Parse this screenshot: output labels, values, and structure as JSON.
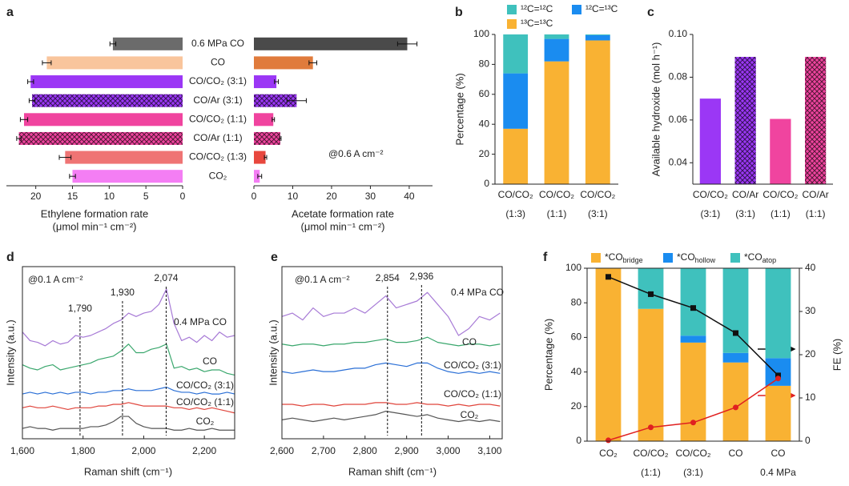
{
  "chart_data": [
    {
      "type": "hbar",
      "panel": "a",
      "categories": [
        "0.6 MPa CO",
        "CO",
        "CO/CO₂ (3:1)",
        "CO/Ar (3:1)",
        "CO/CO₂ (1:1)",
        "CO/Ar (1:1)",
        "CO/CO₂ (1:3)",
        "CO₂"
      ],
      "values": [
        9.5,
        18.5,
        20.7,
        20.5,
        21.6,
        22.3,
        16.0,
        15.0
      ],
      "errors": [
        0.4,
        0.6,
        0.4,
        0.4,
        0.5,
        0.3,
        0.8,
        0.4
      ],
      "colors": [
        "#6b6b6b",
        "#f9c59c",
        "#9b37f5",
        "#9b37f5",
        "#f0449f",
        "#f0449f",
        "#ef7474",
        "#f47ef4"
      ],
      "hatched": [
        false,
        false,
        false,
        true,
        false,
        true,
        false,
        false
      ],
      "xlim": [
        0,
        24
      ],
      "invert_x": true,
      "xticks": [
        0,
        5,
        10,
        15,
        20
      ],
      "xlabel": [
        "Ethylene formation rate",
        "(μmol min⁻¹ cm⁻²)"
      ]
    },
    {
      "type": "hbar",
      "values": [
        39.5,
        15.2,
        5.8,
        11.0,
        5.0,
        6.8,
        3.0,
        1.5
      ],
      "errors": [
        2.5,
        1.0,
        0.5,
        2.5,
        0.3,
        0.2,
        0.3,
        0.5
      ],
      "colors": [
        "#4a4a4a",
        "#e07b3c",
        "#9b37f5",
        "#9b37f5",
        "#f0449f",
        "#f0449f",
        "#e8473e",
        "#f47ef4"
      ],
      "hatched": [
        false,
        false,
        false,
        true,
        false,
        true,
        false,
        false
      ],
      "xlim": [
        0,
        46
      ],
      "invert_x": false,
      "xticks": [
        0,
        10,
        20,
        30,
        40
      ],
      "xlabel": [
        "Acetate formation rate",
        "(μmol min⁻¹ cm⁻²)"
      ],
      "annotation": "@0.6 A cm⁻²"
    },
    {
      "type": "bar",
      "panel": "b",
      "stacked": true,
      "categories": [
        [
          "CO/CO₂",
          "(1:3)"
        ],
        [
          "CO/CO₂",
          "(1:1)"
        ],
        [
          "CO/CO₂",
          "(3:1)"
        ]
      ],
      "series": [
        {
          "name": "¹³C=¹³C",
          "color": "#f9b233",
          "values": [
            37,
            82,
            96
          ]
        },
        {
          "name": "¹²C=¹³C",
          "color": "#1a8cf0",
          "values": [
            37,
            15,
            3.5
          ]
        },
        {
          "name": "¹²C=¹²C",
          "color": "#3fc1bd",
          "values": [
            26,
            3,
            0.5
          ]
        }
      ],
      "ylabel": "Percentage (%)",
      "ylim": [
        0,
        100
      ],
      "yticks": [
        0,
        20,
        40,
        60,
        80,
        100
      ]
    },
    {
      "type": "bar",
      "panel": "c",
      "categories": [
        [
          "CO/CO₂",
          "(3:1)"
        ],
        [
          "CO/Ar",
          "(3:1)"
        ],
        [
          "CO/CO₂",
          "(1:1)"
        ],
        [
          "CO/Ar",
          "(1:1)"
        ]
      ],
      "values": [
        0.07,
        0.0895,
        0.0605,
        0.0895
      ],
      "colors": [
        "#9b37f5",
        "#9b37f5",
        "#f0449f",
        "#f0449f"
      ],
      "hatched": [
        false,
        true,
        false,
        true
      ],
      "ylabel": "Available hydroxide (mol h⁻¹)",
      "ylim": [
        0.03,
        0.1
      ],
      "yticks": [
        0.04,
        0.06,
        0.08,
        {
          "value": 0.1,
          "label": "0.10"
        }
      ]
    },
    {
      "type": "line",
      "panel": "d",
      "x": [
        1600,
        1625,
        1650,
        1675,
        1700,
        1725,
        1750,
        1775,
        1800,
        1825,
        1850,
        1875,
        1900,
        1925,
        1950,
        1975,
        2000,
        2025,
        2050,
        2075,
        2100,
        2125,
        2150,
        2175,
        2200,
        2225,
        2250,
        2275,
        2300
      ],
      "series": [
        {
          "name": "0.4 MPa CO",
          "color": "#a77ad6",
          "values": [
            6.2,
            5.7,
            5.6,
            5.4,
            5.7,
            5.5,
            5.6,
            6.0,
            5.9,
            6.0,
            6.2,
            6.4,
            6.7,
            6.9,
            7.3,
            7.1,
            7.3,
            7.4,
            7.8,
            8.7,
            6.7,
            5.7,
            5.9,
            5.6,
            6.0,
            5.7,
            6.2,
            5.9,
            6.0
          ]
        },
        {
          "name": "CO",
          "color": "#3aa76d",
          "values": [
            4.3,
            4.1,
            4.0,
            4.2,
            4.3,
            4.0,
            4.1,
            4.2,
            4.3,
            4.4,
            4.6,
            4.7,
            4.8,
            5.1,
            5.5,
            5.0,
            5.0,
            5.2,
            5.3,
            5.5,
            4.1,
            4.2,
            4.0,
            4.1,
            3.9,
            4.0,
            4.0,
            3.8,
            3.7
          ]
        },
        {
          "name": "CO/CO₂ (3:1)",
          "color": "#2a6fd6",
          "values": [
            2.6,
            2.7,
            2.6,
            2.7,
            2.6,
            2.7,
            2.6,
            2.7,
            2.7,
            2.6,
            2.7,
            2.7,
            2.8,
            2.8,
            2.9,
            2.8,
            2.8,
            2.8,
            2.9,
            3.0,
            2.8,
            2.7,
            2.7,
            2.6,
            2.7,
            2.6,
            2.6,
            2.7,
            2.6
          ]
        },
        {
          "name": "CO/CO₂ (1:1)",
          "color": "#e0453c",
          "values": [
            1.8,
            1.9,
            1.8,
            1.8,
            1.9,
            1.8,
            1.7,
            1.8,
            1.8,
            1.8,
            1.9,
            1.9,
            2.0,
            2.0,
            2.1,
            2.0,
            1.9,
            1.9,
            1.9,
            1.9,
            1.8,
            1.8,
            1.7,
            1.8,
            1.7,
            1.8,
            1.7,
            1.6,
            1.5
          ]
        },
        {
          "name": "CO₂",
          "color": "#555555",
          "values": [
            0.6,
            0.7,
            0.6,
            0.6,
            0.5,
            0.6,
            0.6,
            0.6,
            0.6,
            0.7,
            0.7,
            0.8,
            1.0,
            1.3,
            1.3,
            0.9,
            0.7,
            0.6,
            0.6,
            0.6,
            0.5,
            0.5,
            0.6,
            0.5,
            0.5,
            0.6,
            0.5,
            0.5,
            0.5
          ]
        }
      ],
      "xlim": [
        1600,
        2300
      ],
      "ylim": [
        0,
        10
      ],
      "xticks": [
        {
          "value": 1600,
          "label": "1,600"
        },
        {
          "value": 1800,
          "label": "1,800"
        },
        {
          "value": 2000,
          "label": "2,000"
        },
        {
          "value": 2200,
          "label": "2,200"
        }
      ],
      "peaks": [
        {
          "value": 1790,
          "label": "1,790"
        },
        {
          "value": 1930,
          "label": "1,930"
        },
        {
          "value": 2074,
          "label": "2,074"
        }
      ],
      "annotation": "@0.1 A cm⁻²",
      "xlabel": "Raman shift (cm⁻¹)",
      "ylabel": "Intensity (a.u.)"
    },
    {
      "type": "line",
      "panel": "e",
      "x": [
        2600,
        2625,
        2650,
        2675,
        2700,
        2725,
        2750,
        2775,
        2800,
        2825,
        2850,
        2875,
        2900,
        2925,
        2950,
        2975,
        3000,
        3025,
        3050,
        3075,
        3100,
        3125
      ],
      "series": [
        {
          "name": "0.4 MPa CO",
          "color": "#a77ad6",
          "values": [
            7.1,
            7.3,
            6.9,
            7.6,
            7.1,
            7.3,
            7.3,
            7.6,
            7.3,
            7.8,
            8.3,
            7.6,
            7.8,
            8.0,
            8.5,
            7.8,
            7.1,
            6.0,
            6.4,
            7.1,
            6.9,
            7.3
          ]
        },
        {
          "name": "CO",
          "color": "#3aa76d",
          "values": [
            5.5,
            5.4,
            5.5,
            5.5,
            5.4,
            5.5,
            5.5,
            5.6,
            5.6,
            5.7,
            5.8,
            5.6,
            5.6,
            5.7,
            5.9,
            5.6,
            5.5,
            5.4,
            5.5,
            5.5,
            5.4,
            5.5
          ]
        },
        {
          "name": "CO/CO₂ (3:1)",
          "color": "#2a6fd6",
          "values": [
            3.9,
            3.8,
            3.9,
            4.0,
            3.9,
            3.9,
            4.0,
            4.1,
            4.1,
            4.3,
            4.4,
            4.3,
            4.2,
            4.4,
            4.4,
            4.1,
            3.9,
            3.8,
            3.9,
            3.8,
            3.9,
            3.8
          ]
        },
        {
          "name": "CO/CO₂ (1:1)",
          "color": "#e0453c",
          "values": [
            2.0,
            2.0,
            1.9,
            2.0,
            2.0,
            1.9,
            2.0,
            2.0,
            2.0,
            2.1,
            2.1,
            2.0,
            2.0,
            2.1,
            2.0,
            2.0,
            1.9,
            2.0,
            1.9,
            2.0,
            2.0,
            1.9
          ]
        },
        {
          "name": "CO₂",
          "color": "#555555",
          "values": [
            1.1,
            1.2,
            1.1,
            1.0,
            1.1,
            1.2,
            1.1,
            1.2,
            1.3,
            1.4,
            1.6,
            1.5,
            1.4,
            1.3,
            1.4,
            1.2,
            1.1,
            1.0,
            1.1,
            1.0,
            1.1,
            1.0
          ]
        }
      ],
      "xlim": [
        2600,
        3130
      ],
      "ylim": [
        0,
        10
      ],
      "xticks": [
        {
          "value": 2600,
          "label": "2,600"
        },
        {
          "value": 2700,
          "label": "2,700"
        },
        {
          "value": 2800,
          "label": "2,800"
        },
        {
          "value": 2900,
          "label": "2,900"
        },
        {
          "value": 3000,
          "label": "3,000"
        },
        {
          "value": 3100,
          "label": "3,100"
        }
      ],
      "peaks": [
        {
          "value": 2854,
          "label": "2,854"
        },
        {
          "value": 2936,
          "label": "2,936"
        }
      ],
      "annotation": "@0.1 A cm⁻²",
      "xlabel": "Raman shift (cm⁻¹)",
      "ylabel": "Intensity (a.u.)"
    },
    {
      "type": "bar",
      "panel": "f",
      "stacked": true,
      "categories": [
        [
          "CO₂"
        ],
        [
          "CO/CO₂",
          "(1:1)"
        ],
        [
          "CO/CO₂",
          "(3:1)"
        ],
        [
          "CO"
        ],
        [
          "CO",
          "0.4 MPa"
        ]
      ],
      "series": [
        {
          "name": "*CObridge",
          "color": "#f9b233",
          "values": [
            100,
            76.5,
            57,
            45.5,
            32
          ]
        },
        {
          "name": "*COhollow",
          "color": "#1a8cf0",
          "values": [
            0,
            0,
            4,
            5.5,
            16
          ]
        },
        {
          "name": "*COatop",
          "color": "#3fc1bd",
          "values": [
            0,
            23.5,
            39,
            49,
            52
          ]
        },
        {
          "type": "line",
          "axis": "y2",
          "marker": "square",
          "color": "#111111",
          "values": [
            38,
            34,
            30.8,
            25,
            15.2
          ]
        },
        {
          "type": "line",
          "axis": "y2",
          "marker": "circle",
          "color": "#e02020",
          "values": [
            0.2,
            3.2,
            4.3,
            7.8,
            14.5
          ]
        }
      ],
      "ylabel": "Percentage (%)",
      "ylim": [
        0,
        100
      ],
      "yticks": [
        0,
        20,
        40,
        60,
        80,
        100
      ],
      "y2label": "FE (%)",
      "y2lim": [
        0,
        40
      ],
      "y2ticks": [
        0,
        10,
        20,
        30,
        40
      ]
    }
  ]
}
